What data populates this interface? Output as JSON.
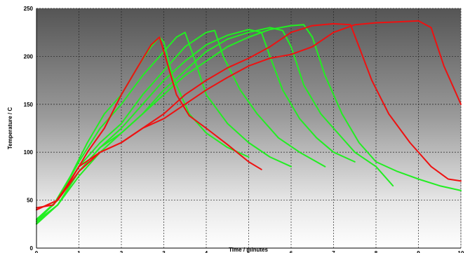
{
  "chart_data": {
    "type": "line",
    "xlabel": "Time / minutes",
    "ylabel": "Temperature / C",
    "xlim": [
      0,
      10
    ],
    "ylim": [
      0,
      250
    ],
    "x_ticks": [
      "0",
      "1",
      "2",
      "3",
      "4",
      "5",
      "6",
      "7",
      "8",
      "9",
      "10"
    ],
    "y_ticks": [
      "0",
      "50",
      "100",
      "150",
      "200",
      "250"
    ],
    "grid": true,
    "background": "vertical gradient, dark grey at top to white at bottom",
    "colors": {
      "green": "#22ee22",
      "red": "#ee1111"
    },
    "series": [
      {
        "color": "green",
        "points": [
          [
            0,
            30
          ],
          [
            0.4,
            45
          ],
          [
            0.8,
            75
          ],
          [
            1.2,
            110
          ],
          [
            1.6,
            140
          ],
          [
            2.0,
            160
          ],
          [
            2.4,
            190
          ],
          [
            2.7,
            210
          ],
          [
            2.9,
            220
          ],
          [
            3.0,
            215
          ],
          [
            3.2,
            180
          ],
          [
            3.6,
            140
          ],
          [
            4.0,
            120
          ],
          [
            4.5,
            105
          ],
          [
            5.0,
            95
          ]
        ]
      },
      {
        "color": "green",
        "points": [
          [
            0,
            28
          ],
          [
            0.5,
            50
          ],
          [
            1.0,
            90
          ],
          [
            1.5,
            125
          ],
          [
            2.0,
            150
          ],
          [
            2.5,
            180
          ],
          [
            3.0,
            205
          ],
          [
            3.3,
            220
          ],
          [
            3.5,
            225
          ],
          [
            3.7,
            200
          ],
          [
            4.0,
            160
          ],
          [
            4.5,
            130
          ],
          [
            5.0,
            110
          ],
          [
            5.5,
            95
          ],
          [
            6.0,
            85
          ]
        ]
      },
      {
        "color": "green",
        "points": [
          [
            0,
            30
          ],
          [
            0.5,
            50
          ],
          [
            1.0,
            85
          ],
          [
            1.5,
            110
          ],
          [
            2.0,
            130
          ],
          [
            2.5,
            160
          ],
          [
            3.0,
            185
          ],
          [
            3.5,
            210
          ],
          [
            4.0,
            225
          ],
          [
            4.2,
            227
          ],
          [
            4.4,
            200
          ],
          [
            4.8,
            165
          ],
          [
            5.2,
            140
          ],
          [
            5.7,
            115
          ],
          [
            6.2,
            100
          ],
          [
            6.8,
            85
          ]
        ]
      },
      {
        "color": "green",
        "points": [
          [
            0,
            25
          ],
          [
            0.5,
            45
          ],
          [
            1.0,
            80
          ],
          [
            1.5,
            105
          ],
          [
            2.0,
            125
          ],
          [
            2.5,
            150
          ],
          [
            3.0,
            175
          ],
          [
            3.5,
            195
          ],
          [
            4.0,
            212
          ],
          [
            4.5,
            222
          ],
          [
            5.0,
            228
          ],
          [
            5.3,
            225
          ],
          [
            5.5,
            200
          ],
          [
            5.8,
            165
          ],
          [
            6.2,
            135
          ],
          [
            6.6,
            115
          ],
          [
            7.0,
            100
          ],
          [
            7.5,
            90
          ]
        ]
      },
      {
        "color": "green",
        "points": [
          [
            0,
            28
          ],
          [
            0.5,
            45
          ],
          [
            1.0,
            75
          ],
          [
            1.5,
            100
          ],
          [
            2.0,
            120
          ],
          [
            2.5,
            140
          ],
          [
            3.0,
            160
          ],
          [
            3.5,
            180
          ],
          [
            4.0,
            195
          ],
          [
            4.5,
            210
          ],
          [
            5.0,
            220
          ],
          [
            5.5,
            228
          ],
          [
            6.0,
            232
          ],
          [
            6.3,
            233
          ],
          [
            6.5,
            220
          ],
          [
            6.8,
            180
          ],
          [
            7.2,
            140
          ],
          [
            7.6,
            110
          ],
          [
            8.0,
            90
          ],
          [
            8.5,
            80
          ],
          [
            9.0,
            72
          ],
          [
            9.5,
            65
          ],
          [
            10.0,
            60
          ]
        ]
      },
      {
        "color": "green",
        "points": [
          [
            0,
            26
          ],
          [
            0.5,
            45
          ],
          [
            1.0,
            80
          ],
          [
            1.5,
            105
          ],
          [
            2.0,
            120
          ],
          [
            2.5,
            140
          ],
          [
            3.0,
            165
          ],
          [
            3.5,
            185
          ],
          [
            4.0,
            205
          ],
          [
            4.5,
            218
          ],
          [
            5.0,
            225
          ],
          [
            5.5,
            230
          ],
          [
            5.8,
            227
          ],
          [
            6.0,
            210
          ],
          [
            6.3,
            170
          ],
          [
            6.7,
            140
          ],
          [
            7.0,
            125
          ],
          [
            7.5,
            100
          ],
          [
            8.0,
            85
          ],
          [
            8.4,
            65
          ]
        ]
      },
      {
        "color": "red",
        "points": [
          [
            0,
            42
          ],
          [
            0.4,
            45
          ],
          [
            0.8,
            70
          ],
          [
            1.2,
            100
          ],
          [
            1.6,
            125
          ],
          [
            2.0,
            160
          ],
          [
            2.4,
            190
          ],
          [
            2.7,
            212
          ],
          [
            2.9,
            220
          ],
          [
            3.1,
            190
          ],
          [
            3.3,
            160
          ],
          [
            3.6,
            138
          ],
          [
            4.0,
            125
          ],
          [
            4.5,
            108
          ],
          [
            5.0,
            90
          ],
          [
            5.3,
            82
          ]
        ]
      },
      {
        "color": "red",
        "points": [
          [
            0,
            40
          ],
          [
            0.5,
            50
          ],
          [
            1.0,
            80
          ],
          [
            1.5,
            100
          ],
          [
            2.0,
            110
          ],
          [
            2.5,
            125
          ],
          [
            3.0,
            135
          ],
          [
            3.5,
            150
          ],
          [
            4.0,
            165
          ],
          [
            4.5,
            178
          ],
          [
            5.0,
            190
          ],
          [
            5.5,
            198
          ],
          [
            6.0,
            202
          ],
          [
            6.5,
            210
          ],
          [
            7.0,
            225
          ],
          [
            7.5,
            233
          ],
          [
            8.0,
            235
          ],
          [
            8.5,
            236
          ],
          [
            9.0,
            237
          ],
          [
            9.3,
            230
          ],
          [
            9.6,
            190
          ],
          [
            9.9,
            160
          ],
          [
            10.0,
            150
          ]
        ]
      },
      {
        "color": "red",
        "points": [
          [
            0,
            40
          ],
          [
            0.5,
            50
          ],
          [
            1.0,
            85
          ],
          [
            1.5,
            100
          ],
          [
            2.0,
            110
          ],
          [
            2.5,
            125
          ],
          [
            3.0,
            140
          ],
          [
            3.5,
            160
          ],
          [
            4.0,
            175
          ],
          [
            4.5,
            188
          ],
          [
            5.0,
            198
          ],
          [
            5.5,
            210
          ],
          [
            6.0,
            225
          ],
          [
            6.5,
            232
          ],
          [
            7.0,
            234
          ],
          [
            7.4,
            233
          ],
          [
            7.6,
            210
          ],
          [
            7.9,
            175
          ],
          [
            8.3,
            140
          ],
          [
            8.8,
            110
          ],
          [
            9.3,
            85
          ],
          [
            9.7,
            72
          ],
          [
            10.0,
            70
          ]
        ]
      }
    ]
  }
}
